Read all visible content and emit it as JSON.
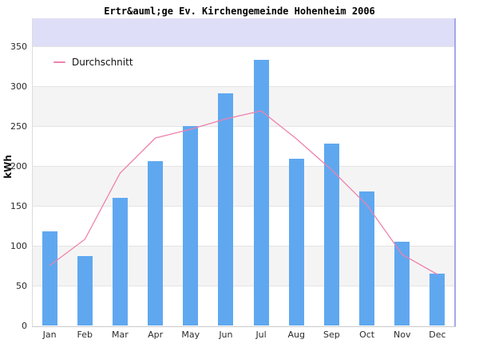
{
  "title": "Ertr&auml;ge Ev. Kirchengemeinde Hohenheim 2006",
  "legend": {
    "label": "Durchschnitt"
  },
  "y_axis": {
    "label": "kWh"
  },
  "chart_data": {
    "type": "bar",
    "title": "Ertr&auml;ge Ev. Kirchengemeinde Hohenheim 2006",
    "categories": [
      "Jan",
      "Feb",
      "Mar",
      "Apr",
      "May",
      "Jun",
      "Jul",
      "Aug",
      "Sep",
      "Oct",
      "Nov",
      "Dec"
    ],
    "series": [
      {
        "name": "",
        "type": "bar",
        "values": [
          118,
          87,
          160,
          206,
          250,
          291,
          333,
          209,
          228,
          168,
          105,
          65
        ]
      },
      {
        "name": "Durchschnitt",
        "type": "line",
        "values": [
          75,
          108,
          191,
          235,
          246,
          259,
          269,
          234,
          195,
          151,
          89,
          64
        ]
      }
    ],
    "xlabel": "",
    "ylabel": "kWh",
    "ylim": [
      0,
      385
    ],
    "y_ticks": [
      0,
      50,
      100,
      150,
      200,
      250,
      300,
      350
    ],
    "grid": true,
    "legend_position": "top-left",
    "colors": {
      "bar": "#5FA8F0",
      "line": "#EF81AD",
      "band_top": "#DEDEF8",
      "band_gray": "#F4F4F4",
      "gridline": "#E4E4E4",
      "axis_line": "#C9C9C9",
      "right_border": "#A6A6EC",
      "left_border": "#DCDCDC",
      "text": "#2B2B2B",
      "title_text": "#000000"
    }
  }
}
